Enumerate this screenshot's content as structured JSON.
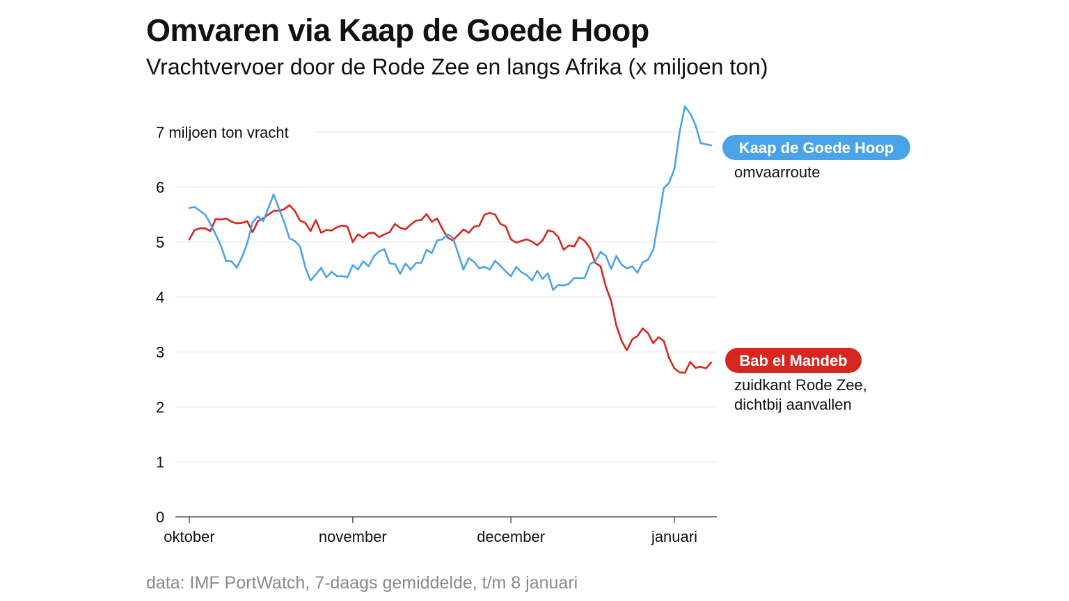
{
  "title": "Omvaren via Kaap de Goede Hoop",
  "subtitle": "Vrachtvervoer door de Rode Zee en langs Afrika (x miljoen ton)",
  "source": "data: IMF PortWatch, 7-daags gemiddelde, t/m 8 januari",
  "colors": {
    "cape": "#4aa3e8",
    "bab": "#d7261e",
    "grid": "#e6e6e6",
    "axis": "#333333"
  },
  "chart_data": {
    "type": "line",
    "ylim": [
      0,
      7.5
    ],
    "yticks": [
      0,
      1,
      2,
      3,
      4,
      5,
      6,
      7
    ],
    "ytick_labels": [
      "0",
      "1",
      "2",
      "3",
      "4",
      "5",
      "6",
      "7 miljoen ton vracht"
    ],
    "xticks": [
      {
        "label": "oktober",
        "date": "2023-10-01"
      },
      {
        "label": "november",
        "date": "2023-11-01"
      },
      {
        "label": "december",
        "date": "2023-12-01"
      },
      {
        "label": "januari",
        "date": "2024-01-01"
      }
    ],
    "x_start": "2023-10-01",
    "x_end": "2024-01-08",
    "grid": true,
    "series": [
      {
        "key": "cape",
        "name": "Kaap de Goede Hoop",
        "description": [
          "omvaarroute"
        ],
        "color": "#4aa3e8",
        "values": [
          5.62,
          5.64,
          5.57,
          5.5,
          5.33,
          5.14,
          4.93,
          4.65,
          4.65,
          4.53,
          4.73,
          4.98,
          5.36,
          5.47,
          5.38,
          5.62,
          5.87,
          5.61,
          5.36,
          5.07,
          5.02,
          4.92,
          4.54,
          4.3,
          4.41,
          4.53,
          4.36,
          4.46,
          4.38,
          4.38,
          4.36,
          4.58,
          4.5,
          4.65,
          4.56,
          4.74,
          4.83,
          4.87,
          4.61,
          4.6,
          4.42,
          4.61,
          4.5,
          4.62,
          4.62,
          4.86,
          4.8,
          5.03,
          5.05,
          5.14,
          5.08,
          4.79,
          4.5,
          4.71,
          4.64,
          4.52,
          4.55,
          4.5,
          4.66,
          4.57,
          4.47,
          4.38,
          4.55,
          4.45,
          4.4,
          4.3,
          4.48,
          4.33,
          4.43,
          4.13,
          4.22,
          4.21,
          4.24,
          4.35,
          4.34,
          4.35,
          4.6,
          4.65,
          4.82,
          4.75,
          4.51,
          4.75,
          4.59,
          4.52,
          4.56,
          4.44,
          4.63,
          4.68,
          4.86,
          5.4,
          5.98,
          6.08,
          6.33,
          7.0,
          7.47,
          7.34,
          7.13,
          6.8,
          6.78,
          6.76
        ]
      },
      {
        "key": "bab",
        "name": "Bab el Mandeb",
        "description": [
          "zuidkant Rode Zee,",
          "dichtbij aanvallen"
        ],
        "color": "#d7261e",
        "values": [
          5.05,
          5.22,
          5.25,
          5.25,
          5.2,
          5.42,
          5.41,
          5.43,
          5.37,
          5.34,
          5.35,
          5.38,
          5.18,
          5.38,
          5.43,
          5.5,
          5.57,
          5.57,
          5.6,
          5.67,
          5.57,
          5.39,
          5.35,
          5.2,
          5.4,
          5.17,
          5.22,
          5.21,
          5.27,
          5.3,
          5.28,
          5.0,
          5.14,
          5.08,
          5.16,
          5.17,
          5.09,
          5.14,
          5.18,
          5.33,
          5.26,
          5.23,
          5.32,
          5.39,
          5.4,
          5.51,
          5.37,
          5.43,
          5.24,
          5.08,
          5.03,
          5.13,
          5.23,
          5.17,
          5.28,
          5.3,
          5.5,
          5.53,
          5.5,
          5.33,
          5.29,
          5.05,
          4.99,
          5.02,
          5.05,
          5.01,
          4.94,
          5.03,
          5.21,
          5.19,
          5.09,
          4.86,
          4.94,
          4.92,
          5.09,
          5.02,
          4.89,
          4.62,
          4.56,
          4.19,
          3.93,
          3.48,
          3.2,
          3.03,
          3.23,
          3.29,
          3.43,
          3.34,
          3.16,
          3.27,
          3.2,
          2.89,
          2.7,
          2.63,
          2.62,
          2.82,
          2.71,
          2.73,
          2.7,
          2.81
        ]
      }
    ]
  }
}
